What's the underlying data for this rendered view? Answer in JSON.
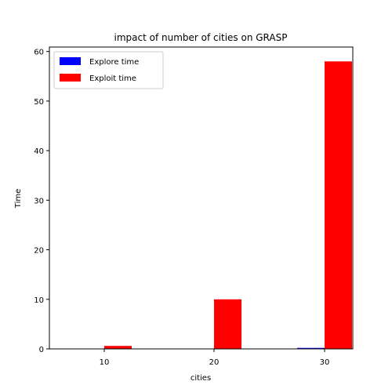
{
  "chart_data": {
    "type": "bar",
    "title": "impact of number of cities on GRASP",
    "xlabel": "cities",
    "ylabel": "Time",
    "categories": [
      "10",
      "20",
      "30"
    ],
    "series": [
      {
        "name": "Explore time",
        "color": "#0000ff",
        "values": [
          0.02,
          0.05,
          0.2
        ]
      },
      {
        "name": "Exploit time",
        "color": "#ff0000",
        "values": [
          0.6,
          10,
          58
        ]
      }
    ],
    "ylim": [
      0,
      60.9
    ],
    "yticks": [
      0,
      10,
      20,
      30,
      40,
      50,
      60
    ],
    "grid": false,
    "legend_position": "top-left"
  }
}
